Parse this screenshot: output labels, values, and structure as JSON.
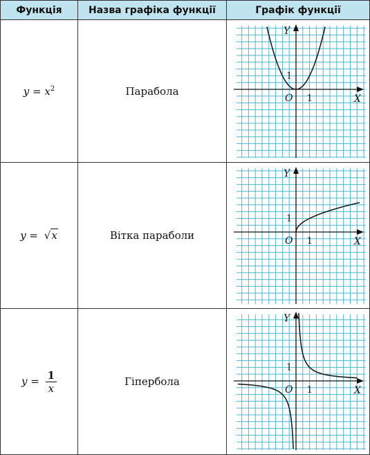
{
  "headers": [
    "Функція",
    "Назва графіка функції",
    "Графік функції"
  ],
  "rows": [
    {
      "function": {
        "lhs": "y =",
        "base": "x",
        "power": "2"
      },
      "name": "Парабола"
    },
    {
      "function": {
        "lhs": "y =",
        "radicand": "x"
      },
      "name": "Вітка параболи"
    },
    {
      "function": {
        "lhs": "y =",
        "numerator": "1",
        "denominator": "x"
      },
      "name": "Гіпербола"
    }
  ],
  "axes": {
    "x_label": "X",
    "y_label": "Y",
    "origin_label": "O",
    "unit_x": "1",
    "unit_y": "1"
  },
  "colors": {
    "header_bg": "#bfe3ef",
    "grid": "#4db6d6",
    "curve": "#111111"
  },
  "chart_data": [
    {
      "type": "line",
      "function": "y = x^2",
      "x": [
        -1.6,
        -1.2,
        -0.8,
        -0.4,
        0,
        0.4,
        0.8,
        1.2,
        1.6
      ],
      "y": [
        2.56,
        1.44,
        0.64,
        0.16,
        0,
        0.16,
        0.64,
        1.44,
        2.56
      ]
    },
    {
      "type": "line",
      "function": "y = sqrt(x)",
      "x": [
        0,
        0.25,
        1,
        2,
        3,
        4
      ],
      "y": [
        0,
        0.5,
        1,
        1.41,
        1.73,
        2
      ]
    },
    {
      "type": "line",
      "function": "y = 1/x",
      "series": [
        {
          "x": [
            -4,
            -2,
            -1,
            -0.5,
            -0.25
          ],
          "y": [
            -0.25,
            -0.5,
            -1,
            -2,
            -4
          ]
        },
        {
          "x": [
            0.25,
            0.5,
            1,
            2,
            4
          ],
          "y": [
            4,
            2,
            1,
            0.5,
            0.25
          ]
        }
      ]
    }
  ]
}
